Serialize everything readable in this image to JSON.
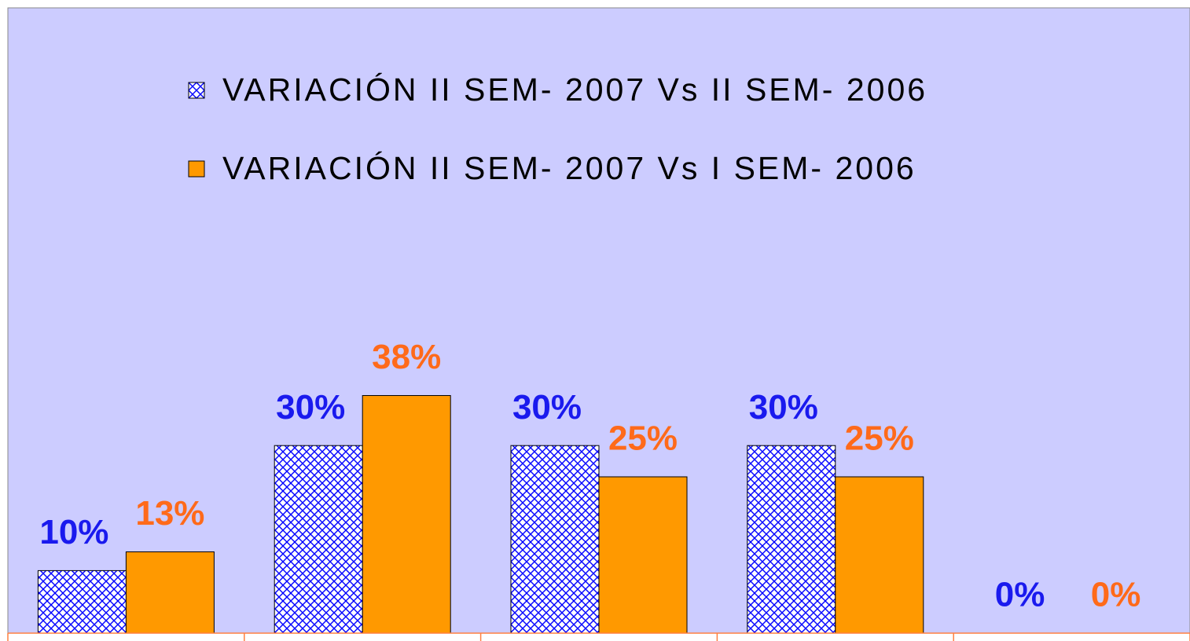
{
  "chart_data": {
    "type": "bar",
    "categories": [
      null,
      null,
      null,
      null,
      null
    ],
    "series": [
      {
        "name": "VARIACIÓN II SEM- 2007 Vs II SEM- 2006",
        "color": "#0000ff",
        "pattern": "checker",
        "label_color": "#1a1aee",
        "values": [
          10,
          30,
          30,
          30,
          0
        ],
        "value_labels": [
          "10%",
          "30%",
          "30%",
          "30%",
          "0%"
        ]
      },
      {
        "name": "VARIACIÓN II SEM- 2007 Vs I SEM- 2006",
        "color": "#ff9900",
        "label_color": "#ff6a1a",
        "values": [
          13,
          38,
          25,
          25,
          0
        ],
        "value_labels": [
          "13%",
          "38%",
          "25%",
          "25%",
          "0%"
        ]
      }
    ],
    "ylim": [
      0,
      100
    ],
    "legend": "top"
  }
}
